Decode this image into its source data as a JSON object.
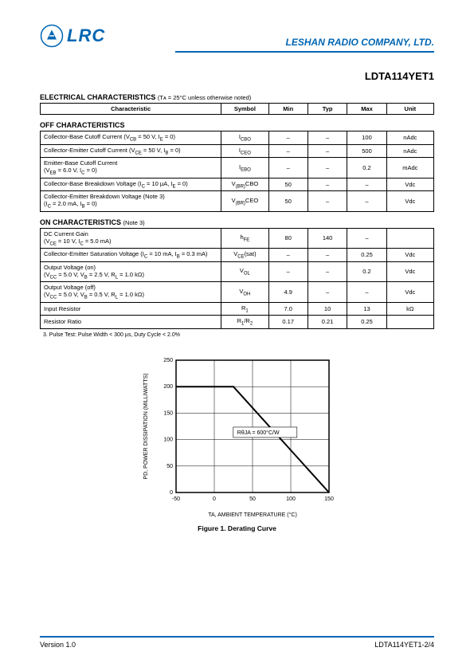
{
  "header": {
    "logo_text": "LRC",
    "company": "LESHAN RADIO COMPANY, LTD.",
    "logo_color": "#0066b3"
  },
  "part_number": "LDTA114YET1",
  "elec_char": {
    "title": "ELECTRICAL CHARACTERISTICS",
    "condition": "(Tᴀ = 25°C unless otherwise noted)",
    "columns": [
      "Characteristic",
      "Symbol",
      "Min",
      "Typ",
      "Max",
      "Unit"
    ]
  },
  "off_section": {
    "title": "OFF CHARACTERISTICS",
    "rows": [
      {
        "char": "Collector-Base Cutoff Current (V_CB = 50 V, I_E = 0)",
        "sym": "I_CBO",
        "min": "–",
        "typ": "–",
        "max": "100",
        "unit": "nAdc"
      },
      {
        "char": "Collector-Emitter Cutoff Current (V_CE = 50 V, I_B = 0)",
        "sym": "I_CEO",
        "min": "–",
        "typ": "–",
        "max": "500",
        "unit": "nAdc"
      },
      {
        "char": "Emitter-Base Cutoff Current\n(V_EB = 6.0 V, I_C = 0)",
        "sym": "I_EBO",
        "min": "–",
        "typ": "–",
        "max": "0.2",
        "unit": "mAdc"
      },
      {
        "char": "Collector-Base Breakdown Voltage (I_C = 10 µA, I_E = 0)",
        "sym": "V_(BR)CBO",
        "min": "50",
        "typ": "–",
        "max": "–",
        "unit": "Vdc"
      },
      {
        "char": "Collector-Emitter Breakdown Voltage (Note 3)\n(I_C = 2.0 mA, I_B = 0)",
        "sym": "V_(BR)CEO",
        "min": "50",
        "typ": "–",
        "max": "–",
        "unit": "Vdc"
      }
    ]
  },
  "on_section": {
    "title": "ON CHARACTERISTICS",
    "condition": "(Note 3)",
    "rows": [
      {
        "char": "DC Current Gain\n(V_CE = 10 V, I_C = 5.0 mA)",
        "sym": "h_FE",
        "min": "80",
        "typ": "140",
        "max": "–",
        "unit": ""
      },
      {
        "char": "Collector-Emitter Saturation Voltage (I_C = 10 mA, I_B = 0.3 mA)",
        "sym": "V_CE(sat)",
        "min": "–",
        "typ": "–",
        "max": "0.25",
        "unit": "Vdc"
      },
      {
        "char": "Output Voltage (on)\n(V_CC = 5.0 V, V_B = 2.5 V, R_L = 1.0 kΩ)",
        "sym": "V_OL",
        "min": "–",
        "typ": "–",
        "max": "0.2",
        "unit": "Vdc"
      },
      {
        "char": "Output Voltage (off)\n(V_CC = 5.0 V, V_B = 0.5 V, R_L = 1.0 kΩ)",
        "sym": "V_OH",
        "min": "4.9",
        "typ": "–",
        "max": "–",
        "unit": "Vdc"
      },
      {
        "char": "Input Resistor",
        "sym": "R_1",
        "min": "7.0",
        "typ": "10",
        "max": "13",
        "unit": "kΩ"
      },
      {
        "char": "Resistor Ratio",
        "sym": "R_1/R_2",
        "min": "0.17",
        "typ": "0.21",
        "max": "0.25",
        "unit": ""
      }
    ]
  },
  "note3": "3.  Pulse Test: Pulse Width < 300 µs, Duty Cycle < 2.0%",
  "chart": {
    "type": "line",
    "title": "Figure 1. Derating Curve",
    "xlabel": "T_A, AMBIENT TEMPERATURE (°C)",
    "ylabel": "P_D, POWER DISSIPATION (MILLIWATTS)",
    "xlim": [
      -50,
      150
    ],
    "xtick_step": 50,
    "xticks": [
      "-50",
      "0",
      "50",
      "100",
      "150"
    ],
    "ylim": [
      0,
      250
    ],
    "ytick_step": 50,
    "yticks": [
      "0",
      "50",
      "100",
      "150",
      "200",
      "250"
    ],
    "annotation": "R_θJA = 600°C/W",
    "line_color": "#000000",
    "line_width": 2,
    "grid_color": "#000000",
    "background": "#ffffff",
    "data_points": [
      {
        "x": -50,
        "y": 200
      },
      {
        "x": 25,
        "y": 200
      },
      {
        "x": 150,
        "y": 0
      }
    ]
  },
  "footer": {
    "version": "Version 1.0",
    "page": "LDTA114YET1-2/4"
  },
  "col_widths": {
    "char": "46%",
    "sym": "12%",
    "min": "10%",
    "typ": "10%",
    "max": "10%",
    "unit": "12%"
  }
}
